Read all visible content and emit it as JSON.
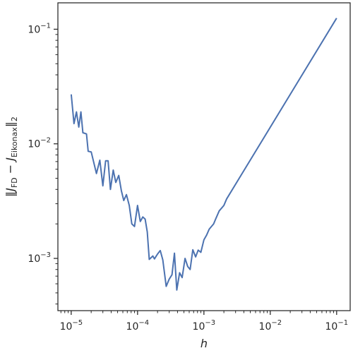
{
  "chart_data": {
    "type": "line",
    "title": "",
    "xlabel": "h",
    "ylabel": "||J_FD − J_Eikonax||_2",
    "x_scale": "log",
    "y_scale": "log",
    "xlim": [
      6.3e-06,
      0.16
    ],
    "ylim": [
      0.00035,
      0.17
    ],
    "grid": false,
    "legend": "none",
    "x_ticks": [
      {
        "value": 1e-05,
        "label": "10^-5"
      },
      {
        "value": 0.0001,
        "label": "10^-4"
      },
      {
        "value": 0.001,
        "label": "10^-3"
      },
      {
        "value": 0.01,
        "label": "10^-2"
      },
      {
        "value": 0.1,
        "label": "10^-1"
      }
    ],
    "y_ticks": [
      {
        "value": 0.001,
        "label": "10^-3"
      },
      {
        "value": 0.01,
        "label": "10^-2"
      },
      {
        "value": 0.1,
        "label": "10^-1"
      }
    ],
    "series": [
      {
        "color": "#4c72b0",
        "x": [
          1e-05,
          1.1e-05,
          1.2e-05,
          1.3e-05,
          1.4e-05,
          1.5e-05,
          1.7e-05,
          1.8e-05,
          2e-05,
          2.2e-05,
          2.4e-05,
          2.7e-05,
          3e-05,
          3.3e-05,
          3.6e-05,
          3.9e-05,
          4.3e-05,
          4.7e-05,
          5.2e-05,
          5.7e-05,
          6.2e-05,
          6.8e-05,
          7.5e-05,
          8.2e-05,
          9e-05,
          0.0001,
          0.00011,
          0.00012,
          0.00013,
          0.00014,
          0.00015,
          0.00017,
          0.00018,
          0.0002,
          0.00022,
          0.00024,
          0.00027,
          0.0003,
          0.00033,
          0.00036,
          0.00039,
          0.00043,
          0.00047,
          0.00052,
          0.00057,
          0.00062,
          0.00068,
          0.00075,
          0.00082,
          0.0009,
          0.001,
          0.0011,
          0.0012,
          0.0014,
          0.0015,
          0.0017,
          0.002,
          0.0022,
          0.1
        ],
        "y": [
          0.027,
          0.015,
          0.019,
          0.014,
          0.019,
          0.0125,
          0.0122,
          0.0086,
          0.0085,
          0.0068,
          0.0055,
          0.0072,
          0.0043,
          0.0071,
          0.0071,
          0.004,
          0.0059,
          0.0046,
          0.0053,
          0.0039,
          0.0032,
          0.0036,
          0.0029,
          0.002,
          0.0019,
          0.0029,
          0.0021,
          0.0023,
          0.0022,
          0.0017,
          0.00098,
          0.00105,
          0.00099,
          0.00109,
          0.00117,
          0.00097,
          0.00057,
          0.00066,
          0.00072,
          0.00111,
          0.00053,
          0.00075,
          0.00068,
          0.001,
          0.00085,
          0.0008,
          0.00119,
          0.00103,
          0.00118,
          0.00113,
          0.00145,
          0.0016,
          0.0018,
          0.002,
          0.0022,
          0.0026,
          0.0029,
          0.0033,
          0.125
        ]
      }
    ]
  }
}
